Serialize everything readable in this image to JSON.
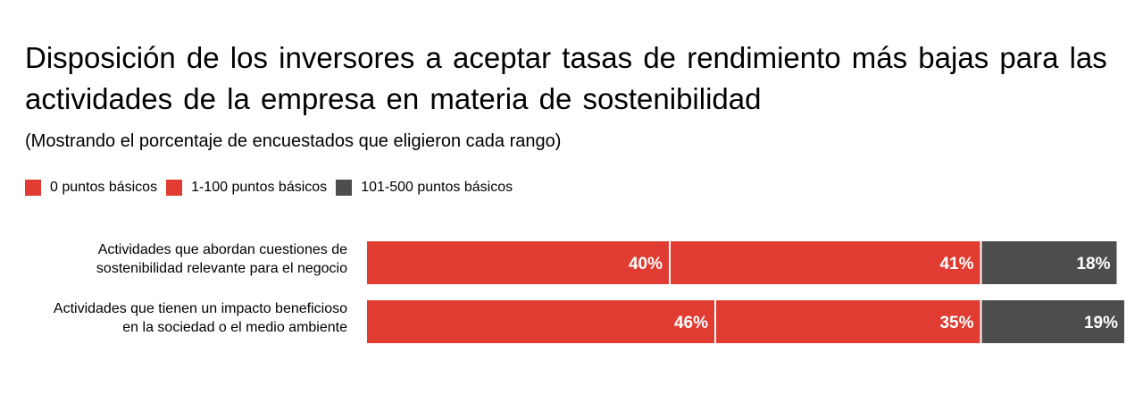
{
  "chart_data": {
    "type": "bar",
    "orientation": "horizontal",
    "stacked": true,
    "title": "Disposición de los inversores a aceptar tasas de rendimiento más bajas para las actividades de la empresa en materia de sostenibilidad",
    "subtitle": "(Mostrando el porcentaje de encuestados que eligieron cada rango)",
    "legend_position": "top-left",
    "grid": false,
    "xlim": [
      0,
      100
    ],
    "categories": [
      [
        "Actividades que abordan cuestiones de",
        "sostenibilidad relevante para el negocio"
      ],
      [
        "Actividades que tienen un impacto beneficioso",
        "en la sociedad o el medio ambiente"
      ]
    ],
    "series": [
      {
        "name": "0 puntos básicos",
        "color": "#e03c31",
        "values": [
          40,
          46
        ],
        "labels": [
          "40%",
          "46%"
        ]
      },
      {
        "name": "1-100 puntos básicos",
        "color": "#e03c31",
        "values": [
          41,
          35
        ],
        "labels": [
          "41%",
          "35%"
        ]
      },
      {
        "name": "101-500 puntos básicos",
        "color": "#4d4d4d",
        "values": [
          18,
          19
        ],
        "labels": [
          "18%",
          "19%"
        ]
      }
    ]
  }
}
